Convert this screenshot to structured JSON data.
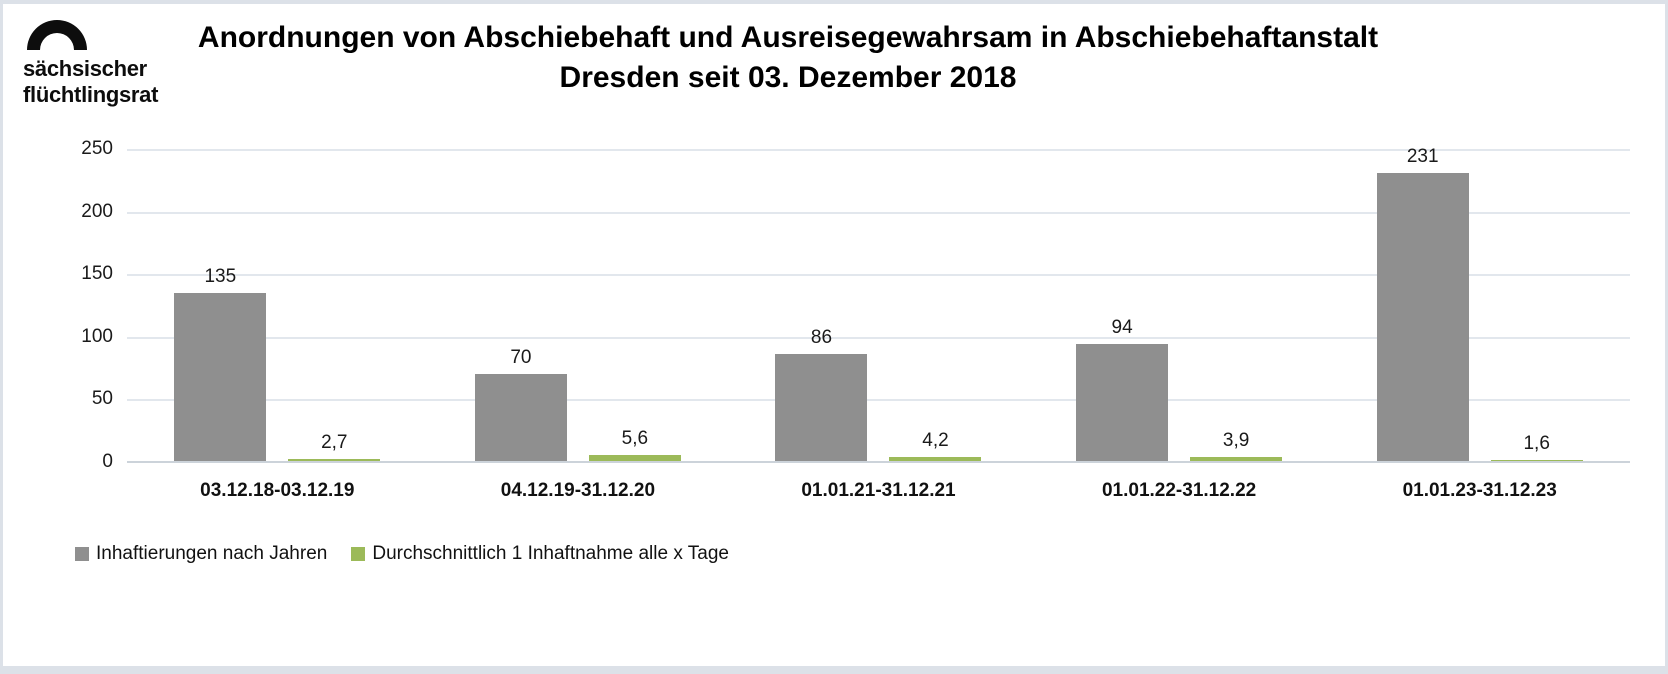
{
  "logo": {
    "line1": "sächsischer",
    "line2": "flüchtlingsrat"
  },
  "title": {
    "line1": "Anordnungen von Abschiebehaft und Ausreisegewahrsam in Abschiebehaftanstalt",
    "line2": "Dresden seit 03. Dezember 2018"
  },
  "chart_data": {
    "type": "bar",
    "title": "Anordnungen von Abschiebehaft und Ausreisegewahrsam in Abschiebehaftanstalt Dresden seit 03. Dezember 2018",
    "categories": [
      "03.12.18-03.12.19",
      "04.12.19-31.12.20",
      "01.01.21-31.12.21",
      "01.01.22-31.12.22",
      "01.01.23-31.12.23"
    ],
    "series": [
      {
        "name": "Inhaftierungen nach Jahren",
        "color": "#8f8f8f",
        "values": [
          135,
          70,
          86,
          94,
          231
        ],
        "labels": [
          "135",
          "70",
          "86",
          "94",
          "231"
        ]
      },
      {
        "name": "Durchschnittlich 1 Inhaftnahme alle x Tage",
        "color": "#9cba59",
        "values": [
          2.7,
          5.6,
          4.2,
          3.9,
          1.6
        ],
        "labels": [
          "2,7",
          "5,6",
          "4,2",
          "3,9",
          "1,6"
        ]
      }
    ],
    "xlabel": "",
    "ylabel": "",
    "ylim": [
      0,
      250
    ],
    "yticks": [
      0,
      50,
      100,
      150,
      200,
      250
    ],
    "grid": true,
    "legend_position": "bottom-left",
    "colors": {
      "grid": "#e2e7ed",
      "axis": "#ccd3da",
      "text": "#1a1a1a"
    }
  }
}
